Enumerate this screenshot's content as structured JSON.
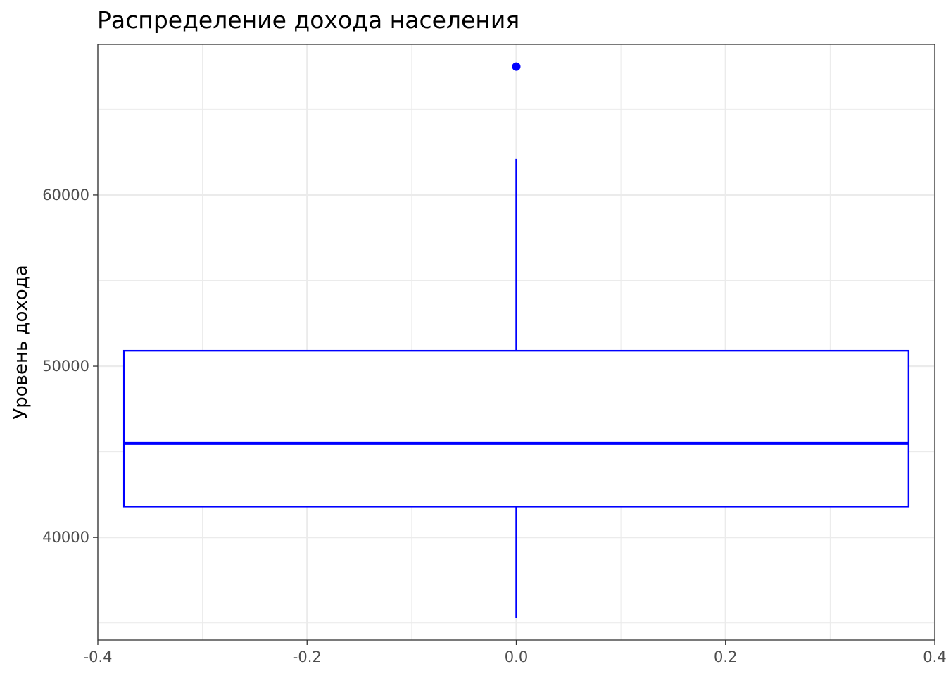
{
  "chart_data": {
    "type": "boxplot",
    "title": "Распределение дохода населения",
    "xlabel": "",
    "ylabel": "Уровень дохода",
    "xlim": [
      -0.4,
      0.4
    ],
    "ylim": [
      34000,
      68800
    ],
    "x_ticks": [
      -0.4,
      -0.2,
      0.0,
      0.2,
      0.4
    ],
    "x_tick_labels": [
      "-0.4",
      "-0.2",
      "0.0",
      "0.2",
      "0.4"
    ],
    "y_ticks": [
      40000,
      50000,
      60000
    ],
    "y_tick_labels": [
      "40000",
      "50000",
      "60000"
    ],
    "grid": true,
    "box": {
      "x_center": 0.0,
      "x_left": -0.375,
      "x_right": 0.375,
      "q1": 41800,
      "median": 45500,
      "q3": 50900,
      "whisker_low": 35300,
      "whisker_high": 62100,
      "outliers": [
        67500
      ]
    },
    "colors": {
      "box": "#0000ff",
      "grid": "#ebebeb",
      "panel_border": "#333333",
      "tick_text": "#4d4d4d"
    }
  }
}
